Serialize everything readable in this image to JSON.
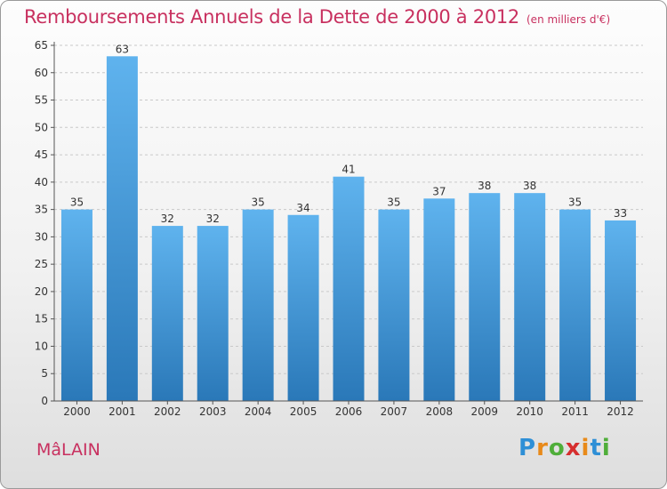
{
  "chart_data": {
    "type": "bar",
    "title": "Remboursements Annuels de la Dette de 2000 à 2012",
    "subtitle": "(en milliers d'€)",
    "categories": [
      "2000",
      "2001",
      "2002",
      "2003",
      "2004",
      "2005",
      "2006",
      "2007",
      "2008",
      "2009",
      "2010",
      "2011",
      "2012"
    ],
    "values": [
      35,
      63,
      32,
      32,
      35,
      34,
      41,
      35,
      37,
      38,
      38,
      35,
      33
    ],
    "ylim": [
      0,
      65
    ],
    "yticks": [
      0,
      5,
      10,
      15,
      20,
      25,
      30,
      35,
      40,
      45,
      50,
      55,
      60,
      65
    ],
    "grid": true,
    "bar_color": "#4a9fdc"
  },
  "footer": {
    "commune": "MâLAIN",
    "brand": "Proxiti"
  },
  "colors": {
    "title": "#c8305f",
    "brand_letters": [
      "#2e8fd6",
      "#e88a1a",
      "#4fae3a",
      "#d62e2e",
      "#e88a1a",
      "#2e8fd6",
      "#4fae3a"
    ]
  }
}
